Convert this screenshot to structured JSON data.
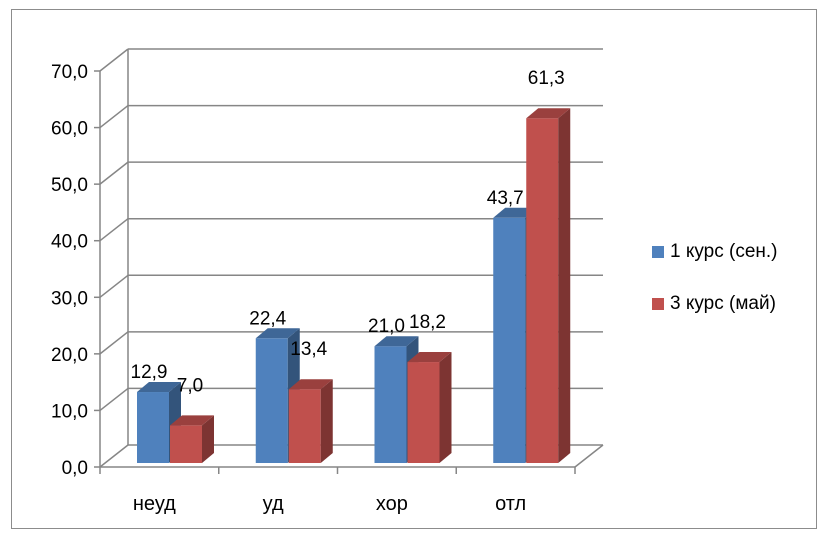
{
  "chart_data": {
    "type": "bar",
    "categories": [
      "неуд",
      "уд",
      "хор",
      "отл"
    ],
    "series": [
      {
        "name": "1 курс (сен.)",
        "values": [
          12.9,
          22.4,
          21.0,
          43.7
        ],
        "labels": [
          "12,9",
          "22,4",
          "21,0",
          "43,7"
        ],
        "color": "#4f81bd"
      },
      {
        "name": "3 курс (май)",
        "values": [
          7.0,
          13.4,
          18.2,
          61.3
        ],
        "labels": [
          "7,0",
          "13,4",
          "18,2",
          "61,3"
        ],
        "color": "#c0504d"
      }
    ],
    "ylim": [
      0,
      70
    ],
    "yticks": [
      "0,0",
      "10,0",
      "20,0",
      "30,0",
      "40,0",
      "50,0",
      "60,0",
      "70,0"
    ],
    "grid": true,
    "legend": "right",
    "style": "3d-clustered-column"
  }
}
